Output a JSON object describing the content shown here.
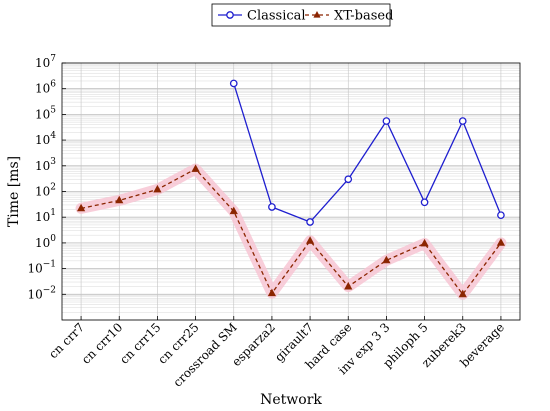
{
  "chart_data": {
    "type": "line",
    "y_scale": "log",
    "ylim": [
      0.001,
      10000000
    ],
    "xlabel": "Network",
    "ylabel": "Time [ms]",
    "grid": true,
    "legend_position": "top",
    "categories": [
      "cn crr7",
      "cn crr10",
      "cn crr15",
      "cn crr25",
      "crossroad SM",
      "esparza2",
      "girault7",
      "hard case",
      "inv exp 3 3",
      "philoph 5",
      "zuberek3",
      "beverage"
    ],
    "y_ticks": [
      {
        "value": 0.01,
        "base": "10",
        "exp": "−2"
      },
      {
        "value": 0.1,
        "base": "10",
        "exp": "−1"
      },
      {
        "value": 1,
        "base": "10",
        "exp": "0"
      },
      {
        "value": 10,
        "base": "10",
        "exp": "1"
      },
      {
        "value": 100,
        "base": "10",
        "exp": "2"
      },
      {
        "value": 1000,
        "base": "10",
        "exp": "3"
      },
      {
        "value": 10000,
        "base": "10",
        "exp": "4"
      },
      {
        "value": 100000,
        "base": "10",
        "exp": "5"
      },
      {
        "value": 1000000,
        "base": "10",
        "exp": "6"
      },
      {
        "value": 10000000,
        "base": "10",
        "exp": "7"
      }
    ],
    "series": [
      {
        "name": "Classical",
        "color": "#1f1fcf",
        "line_style": "solid",
        "marker": "circle",
        "values": [
          null,
          null,
          null,
          null,
          1600000,
          25,
          6.5,
          300,
          55000,
          38,
          55000,
          12
        ]
      },
      {
        "name": "XT-based",
        "color": "#8b2500",
        "line_style": "dashed",
        "marker": "triangle",
        "highlight_color": "#f7c6d3",
        "values": [
          22,
          45,
          120,
          750,
          17,
          0.011,
          1.2,
          0.02,
          0.21,
          0.95,
          0.01,
          1.0
        ]
      }
    ]
  }
}
